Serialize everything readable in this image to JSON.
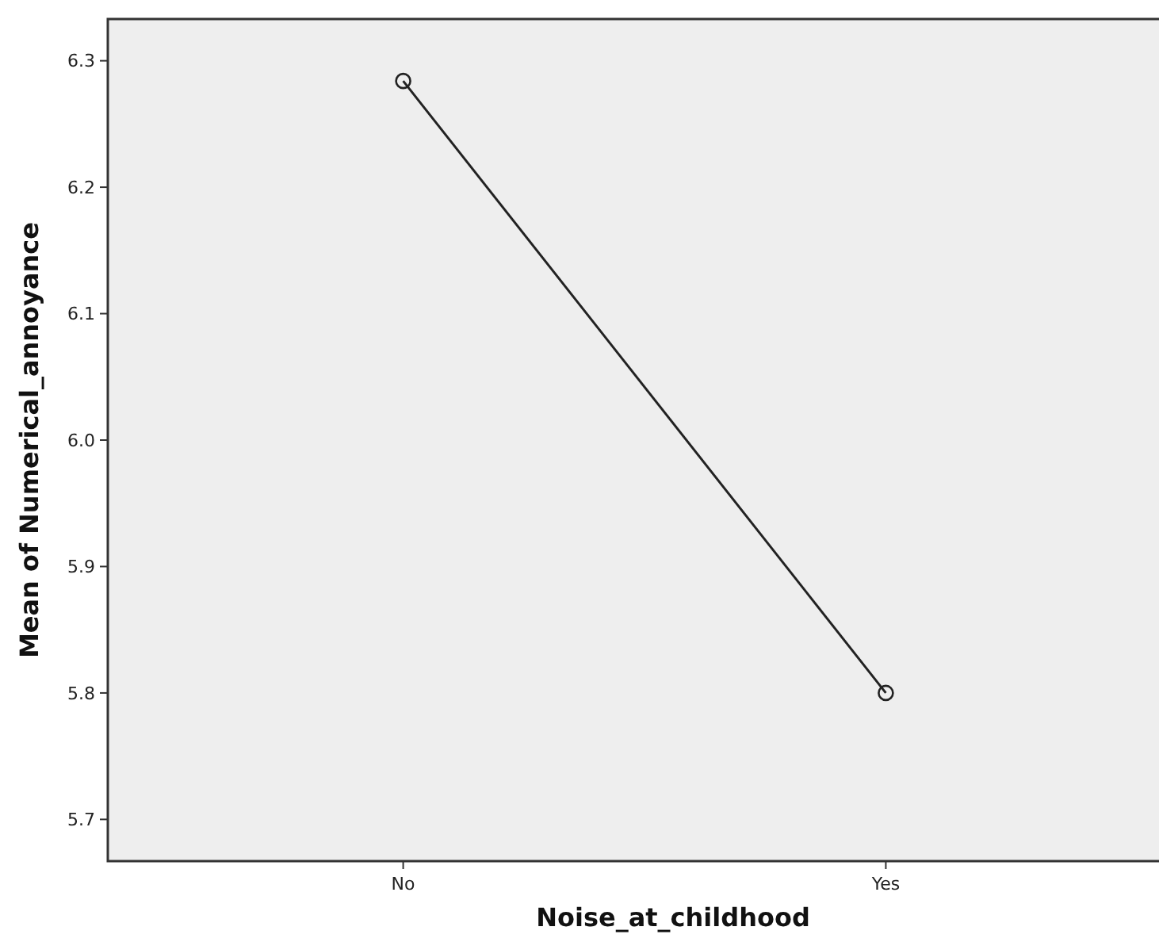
{
  "chart_data": {
    "type": "line",
    "xlabel": "Noise_at_childhood",
    "ylabel": "Mean of Numerical_annoyance",
    "categories": [
      "No",
      "Yes"
    ],
    "series": [
      {
        "color": "#222222",
        "values": [
          6.284,
          5.8
        ]
      }
    ],
    "ylim": [
      5.667,
      6.333
    ],
    "yticks": [
      5.7,
      5.8,
      5.9,
      {
        "value": 6,
        "label": "6.0"
      },
      6.1,
      6.2,
      6.3
    ],
    "grid": false,
    "marker": "circle",
    "line_style": "solid"
  }
}
